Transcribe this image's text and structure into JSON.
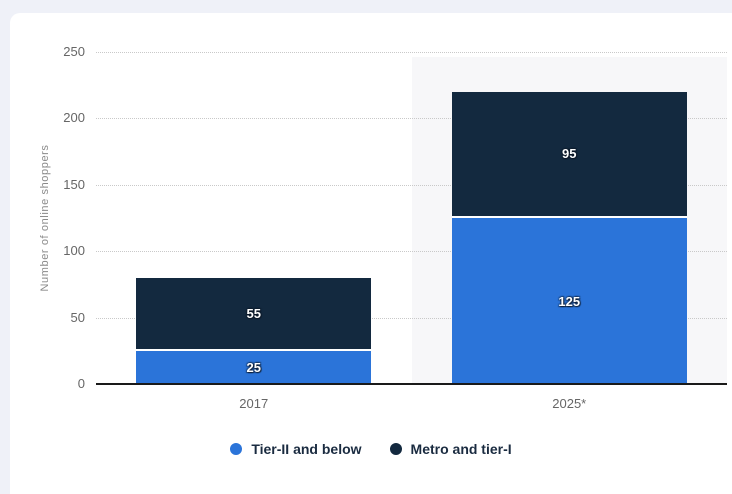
{
  "chart_data": {
    "type": "bar",
    "stacked": true,
    "title": "",
    "xlabel": "",
    "ylabel": "Number of online shoppers",
    "categories": [
      "2017",
      "2025*"
    ],
    "series": [
      {
        "name": "Tier-II and below",
        "color": "#2b74d9",
        "values": [
          25,
          125
        ]
      },
      {
        "name": "Metro and tier-I",
        "color": "#13293f",
        "values": [
          55,
          95
        ]
      }
    ],
    "totals": [
      80,
      220
    ],
    "ylim": [
      0,
      250
    ],
    "yticks": [
      0,
      50,
      100,
      150,
      200,
      250
    ],
    "grid": "horizontal-dotted",
    "legend_position": "bottom",
    "highlighted_category": "2025*"
  },
  "colors": {
    "page_background": "#eff1f8",
    "card_background": "#ffffff",
    "column_highlight": "#f7f7f9",
    "axis_line": "#1a1a1a",
    "gridline": "#c9c9c9",
    "tick_label": "#666666",
    "axis_title": "#8a8a8a",
    "value_label": "#ffffff",
    "legend_text": "#1a2b40"
  }
}
